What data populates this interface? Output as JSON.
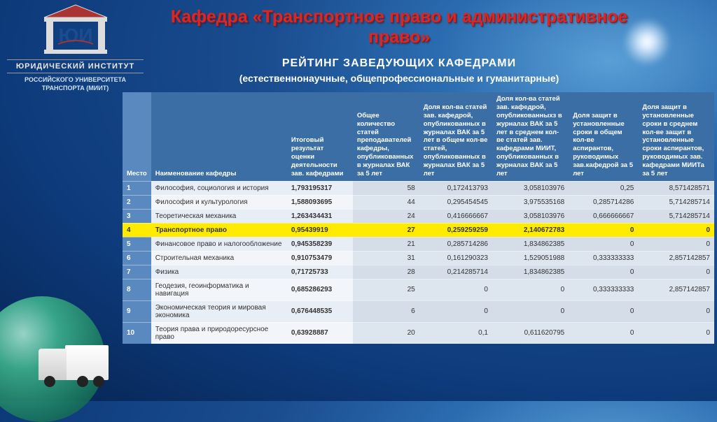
{
  "logo": {
    "letters": "ЮИ",
    "institute": "ЮРИДИЧЕСКИЙ ИНСТИТУТ",
    "university": "РОССИЙСКОГО УНИВЕРСИТЕТА ТРАНСПОРТА (МИИТ)"
  },
  "header": {
    "title": "Кафедра «Транспортное право и административное право»",
    "subtitle1": "РЕЙТИНГ   ЗАВЕДУЮЩИХ КАФЕДРАМИ",
    "subtitle2": "(естественнонаучные, общепрофессиональные и гуманитарные)"
  },
  "table": {
    "columns": [
      "Место",
      "Наименование кафедры",
      "Итоговый результат оценки деятельности зав. кафедрами",
      "Общее количество статей преподавателей кафедры, опубликованных в журналах ВАК за 5 лет",
      "Доля кол-ва статей зав. кафедрой, опубликованных в журналах ВАК за 5 лет в общем кол-ве статей, опубликованных в журналах ВАК за 5 лет",
      "Доля кол-ва статей зав. кафедрой, опубликованныхз в журналах ВАК за 5 лет в среднем кол-ве статей зав. кафедрами МИИТ, опубликованных в журналах ВАК за 5 лет",
      "Доля защит в установленные сроки в общем кол-ве аспирантов, руководимых зав.кафедрой за 5 лет",
      "Доля защит в установленные сроки в среднем кол-ве защит в установленные сроки аспирантов, руководимых зав. кафедрами МИИТа за 5 лет"
    ],
    "col_widths": [
      "30px",
      "200px",
      "95px",
      "95px",
      "105px",
      "110px",
      "100px",
      "110px"
    ],
    "highlight_row": 3,
    "rows": [
      {
        "rank": "1",
        "name": "Философия, социология и история",
        "result": "1,793195317",
        "c1": "58",
        "c2": "0,172413793",
        "c3": "3,058103976",
        "c4": "0,25",
        "c5": "8,571428571"
      },
      {
        "rank": "2",
        "name": "Философия и культурология",
        "result": "1,588093695",
        "c1": "44",
        "c2": "0,295454545",
        "c3": "3,975535168",
        "c4": "0,285714286",
        "c5": "5,714285714"
      },
      {
        "rank": "3",
        "name": "Теоретическая механика",
        "result": "1,263434431",
        "c1": "24",
        "c2": "0,416666667",
        "c3": "3,058103976",
        "c4": "0,666666667",
        "c5": "5,714285714"
      },
      {
        "rank": "4",
        "name": "Транспортное право",
        "result": "0,95439919",
        "c1": "27",
        "c2": "0,259259259",
        "c3": "2,140672783",
        "c4": "0",
        "c5": "0"
      },
      {
        "rank": "5",
        "name": "Финансовое право и налогообложение",
        "result": "0,945358239",
        "c1": "21",
        "c2": "0,285714286",
        "c3": "1,834862385",
        "c4": "0",
        "c5": "0"
      },
      {
        "rank": "6",
        "name": "Строительная механика",
        "result": "0,910753479",
        "c1": "31",
        "c2": "0,161290323",
        "c3": "1,529051988",
        "c4": "0,333333333",
        "c5": "2,857142857"
      },
      {
        "rank": "7",
        "name": "Физика",
        "result": "0,71725733",
        "c1": "28",
        "c2": "0,214285714",
        "c3": "1,834862385",
        "c4": "0",
        "c5": "0"
      },
      {
        "rank": "8",
        "name": "Геодезия, геоинформатика и навигация",
        "result": "0,685286293",
        "c1": "25",
        "c2": "0",
        "c3": "0",
        "c4": "0,333333333",
        "c5": "2,857142857"
      },
      {
        "rank": "9",
        "name": "Экономическая теория и мировая экономика",
        "result": "0,676448535",
        "c1": "6",
        "c2": "0",
        "c3": "0",
        "c4": "0",
        "c5": "0"
      },
      {
        "rank": "10",
        "name": "Теория права и природоресурсное право",
        "result": "0,63928887",
        "c1": "20",
        "c2": "0,1",
        "c3": "0,611620795",
        "c4": "0",
        "c5": "0"
      }
    ]
  },
  "colors": {
    "header_bg": "#3b6ea5",
    "rank_bg": "#5a89bf",
    "cell_label_bg": "#e8eef5",
    "cell_num_bg": "#d4dde8",
    "highlight_bg": "#ffeb00",
    "title_color": "#d62828"
  }
}
